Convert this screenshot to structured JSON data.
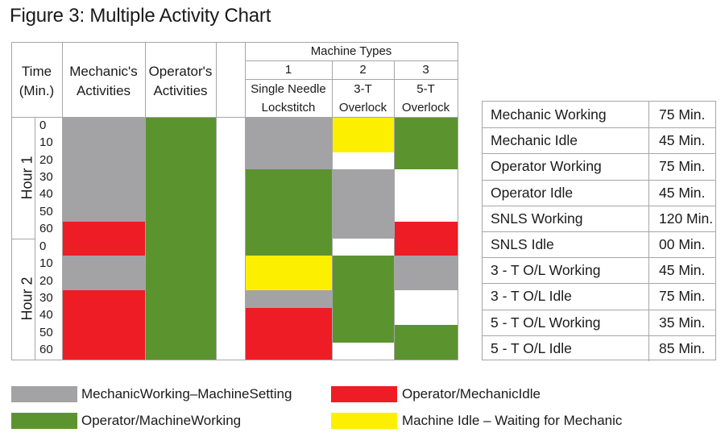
{
  "title": "Figure 3: Multiple Activity Chart",
  "colors": {
    "gray": "#a3a3a5",
    "green": "#5b942f",
    "red": "#ee1c24",
    "yellow": "#fcf000"
  },
  "header": {
    "time": "Time",
    "time_unit": "(Min.)",
    "mechanic_1": "Mechanic's",
    "mechanic_2": "Activities",
    "operator_1": "Operator's",
    "operator_2": "Activities",
    "machine_types": "Machine Types",
    "m1_num": "1",
    "m1_name_1": "Single Needle",
    "m1_name_2": "Lockstitch",
    "m2_num": "2",
    "m2_name_1": "3-T",
    "m2_name_2": "Overlock",
    "m3_num": "3",
    "m3_name_1": "5-T",
    "m3_name_2": "Overlock"
  },
  "hours": [
    "Hour 1",
    "Hour 2"
  ],
  "ticks": [
    "0",
    "10",
    "20",
    "30",
    "40",
    "50",
    "60"
  ],
  "chart_data": {
    "type": "table",
    "unit": "minutes",
    "columns": [
      {
        "name": "Mechanic's Activities",
        "segments": [
          {
            "start": 0,
            "end": 60,
            "state": "gray"
          },
          {
            "start": 60,
            "end": 80,
            "state": "red"
          },
          {
            "start": 80,
            "end": 100,
            "state": "gray"
          },
          {
            "start": 100,
            "end": 140,
            "state": "red"
          }
        ]
      },
      {
        "name": "Operator's Activities",
        "segments": [
          {
            "start": 0,
            "end": 140,
            "state": "green"
          }
        ]
      },
      {
        "name": "Single Needle Lockstitch",
        "segments": [
          {
            "start": 0,
            "end": 30,
            "state": "gray"
          },
          {
            "start": 30,
            "end": 80,
            "state": "green"
          },
          {
            "start": 80,
            "end": 100,
            "state": "yellow"
          },
          {
            "start": 100,
            "end": 110,
            "state": "gray"
          },
          {
            "start": 110,
            "end": 140,
            "state": "red"
          }
        ]
      },
      {
        "name": "3-T Overlock",
        "segments": [
          {
            "start": 0,
            "end": 20,
            "state": "yellow"
          },
          {
            "start": 20,
            "end": 30,
            "state": "white"
          },
          {
            "start": 30,
            "end": 70,
            "state": "gray"
          },
          {
            "start": 70,
            "end": 80,
            "state": "white"
          },
          {
            "start": 80,
            "end": 130,
            "state": "green"
          },
          {
            "start": 130,
            "end": 140,
            "state": "white"
          }
        ]
      },
      {
        "name": "5-T Overlock",
        "segments": [
          {
            "start": 0,
            "end": 30,
            "state": "green"
          },
          {
            "start": 30,
            "end": 60,
            "state": "white"
          },
          {
            "start": 60,
            "end": 80,
            "state": "red"
          },
          {
            "start": 80,
            "end": 100,
            "state": "gray"
          },
          {
            "start": 100,
            "end": 120,
            "state": "white"
          },
          {
            "start": 120,
            "end": 140,
            "state": "green"
          }
        ]
      }
    ]
  },
  "summary": [
    {
      "label": "Mechanic Working",
      "value": "75 Min."
    },
    {
      "label": "Mechanic Idle",
      "value": "45 Min."
    },
    {
      "label": "Operator Working",
      "value": "75 Min."
    },
    {
      "label": "Operator Idle",
      "value": "45 Min."
    },
    {
      "label": "SNLS Working",
      "value": "120 Min."
    },
    {
      "label": "SNLS Idle",
      "value": "00 Min."
    },
    {
      "label": "3 - T O/L Working",
      "value": "45 Min."
    },
    {
      "label": "3 - T O/L Idle",
      "value": "75 Min."
    },
    {
      "label": "5 - T O/L Working",
      "value": "35 Min."
    },
    {
      "label": "5 - T O/L Idle",
      "value": "85 Min."
    }
  ],
  "legend": [
    {
      "label": "MechanicWorking–MachineSetting",
      "color": "gray"
    },
    {
      "label": "Operator/MechanicIdle",
      "color": "red"
    },
    {
      "label": "Operator/MachineWorking",
      "color": "green"
    },
    {
      "label": "Machine Idle – Waiting for Mechanic",
      "color": "yellow"
    }
  ]
}
